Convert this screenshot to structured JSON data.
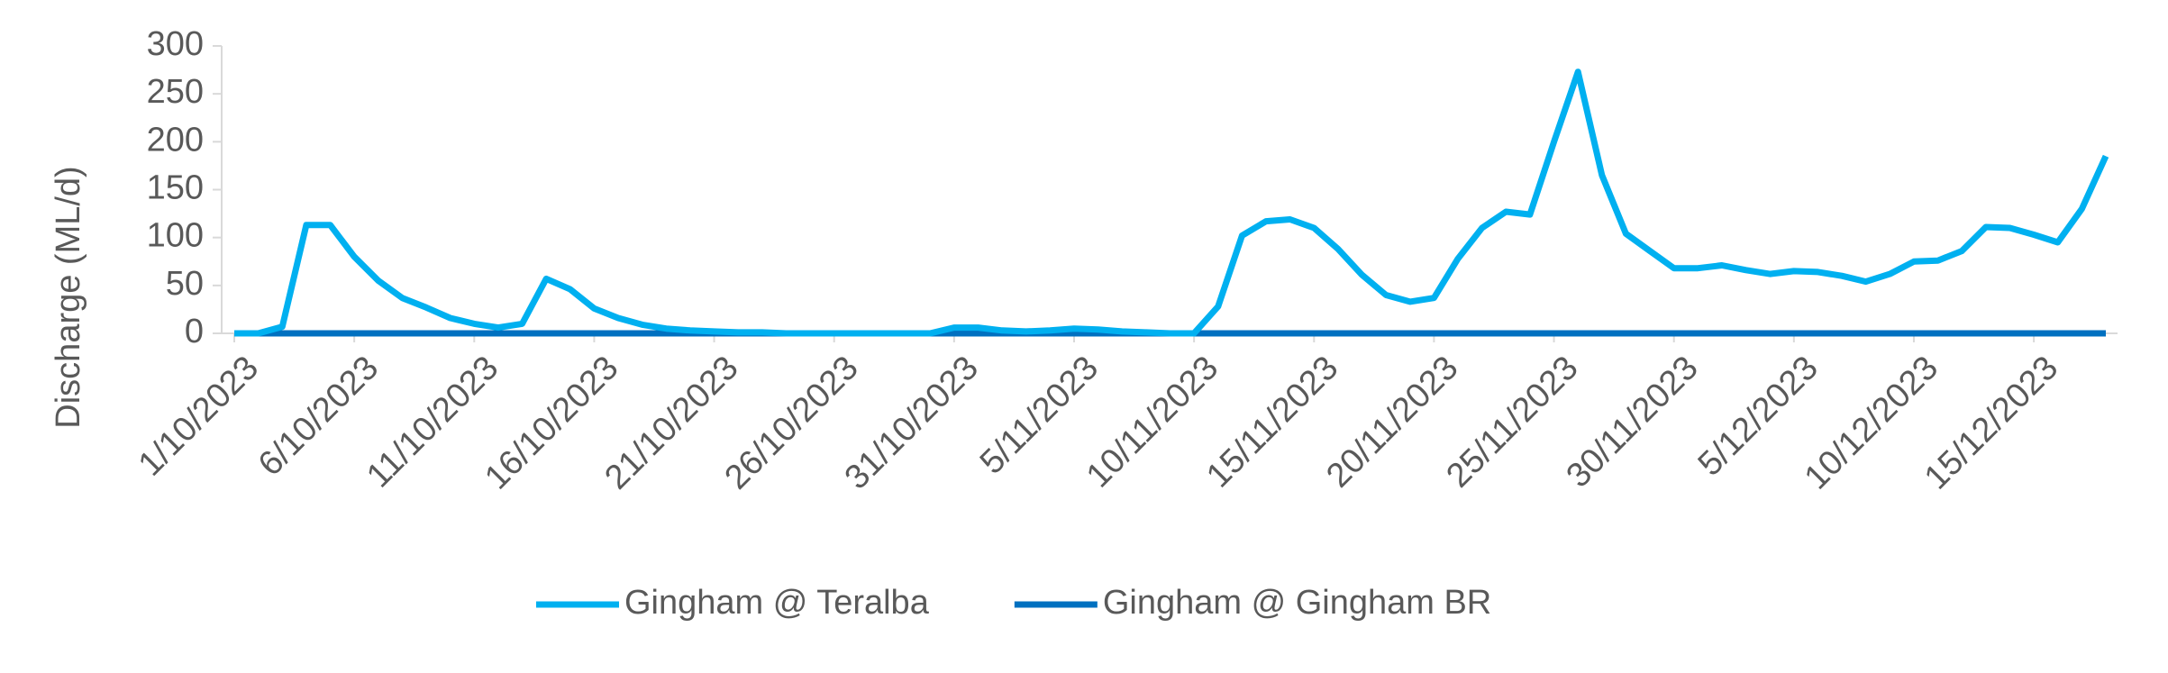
{
  "chart_data": {
    "type": "line",
    "y_label": "Discharge (ML/d)",
    "categories": [
      "1/10/2023",
      null,
      null,
      null,
      null,
      "6/10/2023",
      null,
      null,
      null,
      null,
      "11/10/2023",
      null,
      null,
      null,
      null,
      "16/10/2023",
      null,
      null,
      null,
      null,
      "21/10/2023",
      null,
      null,
      null,
      null,
      "26/10/2023",
      null,
      null,
      null,
      null,
      "31/10/2023",
      null,
      null,
      null,
      null,
      "5/11/2023",
      null,
      null,
      null,
      null,
      "10/11/2023",
      null,
      null,
      null,
      null,
      "15/11/2023",
      null,
      null,
      null,
      null,
      "20/11/2023",
      null,
      null,
      null,
      null,
      "25/11/2023",
      null,
      null,
      null,
      null,
      "30/11/2023",
      null,
      null,
      null,
      null,
      "5/12/2023",
      null,
      null,
      null,
      null,
      "10/12/2023",
      null,
      null,
      null,
      null,
      "15/12/2023",
      null,
      null,
      null
    ],
    "series": [
      {
        "name": "Gingham @ Teralba",
        "color": "#00b0f0",
        "values": [
          0,
          0,
          7,
          113,
          113,
          80,
          55,
          37,
          27,
          16,
          10,
          6,
          10,
          57,
          46,
          26,
          16,
          9,
          5,
          3,
          2,
          1,
          1,
          0,
          0,
          0,
          0,
          0,
          0,
          0,
          6,
          6,
          3,
          2,
          3,
          5,
          4,
          2,
          1,
          0,
          0,
          28,
          102,
          117,
          119,
          110,
          88,
          61,
          40,
          33,
          37,
          78,
          110,
          127,
          124,
          200,
          273,
          165,
          104,
          86,
          68,
          68,
          71,
          66,
          62,
          65,
          64,
          60,
          54,
          62,
          75,
          76,
          86,
          111,
          110,
          103,
          95,
          130,
          185
        ]
      },
      {
        "name": "Gingham @ Gingham BR",
        "color": "#0070c0",
        "values": [
          0,
          0,
          0,
          0,
          0,
          0,
          0,
          0,
          0,
          0,
          0,
          0,
          0,
          0,
          0,
          0,
          0,
          0,
          0,
          0,
          0,
          0,
          0,
          0,
          0,
          0,
          0,
          0,
          0,
          0,
          0,
          0,
          0,
          0,
          0,
          0,
          0,
          0,
          0,
          0,
          0,
          0,
          0,
          0,
          0,
          0,
          0,
          0,
          0,
          0,
          0,
          0,
          0,
          0,
          0,
          0,
          0,
          0,
          0,
          0,
          0,
          0,
          0,
          0,
          0,
          0,
          0,
          0,
          0,
          0,
          0,
          0,
          0,
          0,
          0,
          0,
          0,
          0,
          0
        ]
      }
    ],
    "ylim": [
      0,
      300
    ],
    "yticks": [
      0,
      50,
      100,
      150,
      200,
      250,
      300
    ]
  }
}
